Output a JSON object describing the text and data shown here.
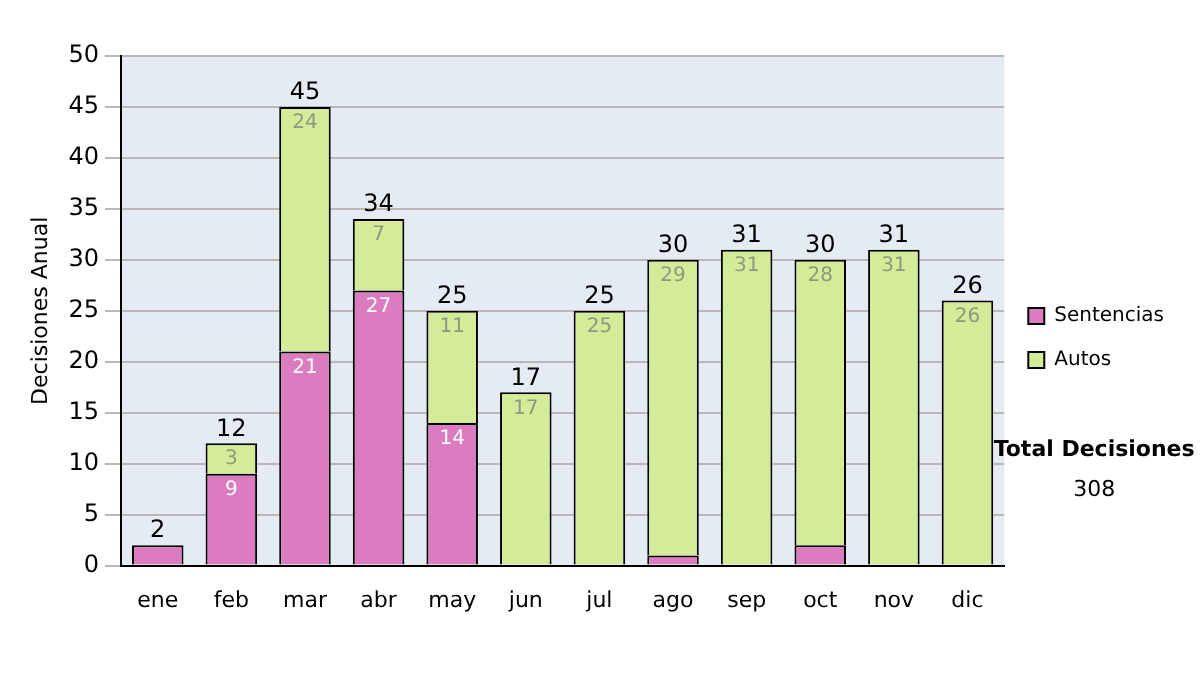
{
  "chart_data": {
    "type": "bar",
    "stacked": true,
    "ylabel": "Decisiones Anual",
    "categories": [
      "ene",
      "feb",
      "mar",
      "abr",
      "may",
      "jun",
      "jul",
      "ago",
      "sep",
      "oct",
      "nov",
      "dic"
    ],
    "series": [
      {
        "name": "Sentencias",
        "color": "#dc7cc0",
        "values": [
          2,
          9,
          21,
          27,
          14,
          0,
          0,
          1,
          0,
          2,
          0,
          0
        ],
        "value_labels": [
          null,
          "9",
          "21",
          "27",
          "14",
          null,
          null,
          null,
          null,
          null,
          null,
          null
        ]
      },
      {
        "name": "Autos",
        "color": "#d4ec98",
        "values": [
          0,
          3,
          24,
          7,
          11,
          17,
          25,
          29,
          31,
          28,
          31,
          26
        ],
        "value_labels": [
          null,
          "3",
          "24",
          "7",
          "11",
          "17",
          "25",
          "29",
          "31",
          "28",
          "31",
          "26"
        ]
      }
    ],
    "totals": [
      "2",
      "12",
      "45",
      "34",
      "25",
      "17",
      "25",
      "30",
      "31",
      "30",
      "31",
      "26"
    ],
    "ylim": [
      0,
      50
    ],
    "yticks": [
      0,
      5,
      10,
      15,
      20,
      25,
      30,
      35,
      40,
      45,
      50
    ],
    "grid": "y",
    "legend": "right",
    "annotations": [
      "Total Decisiones",
      "308"
    ]
  }
}
